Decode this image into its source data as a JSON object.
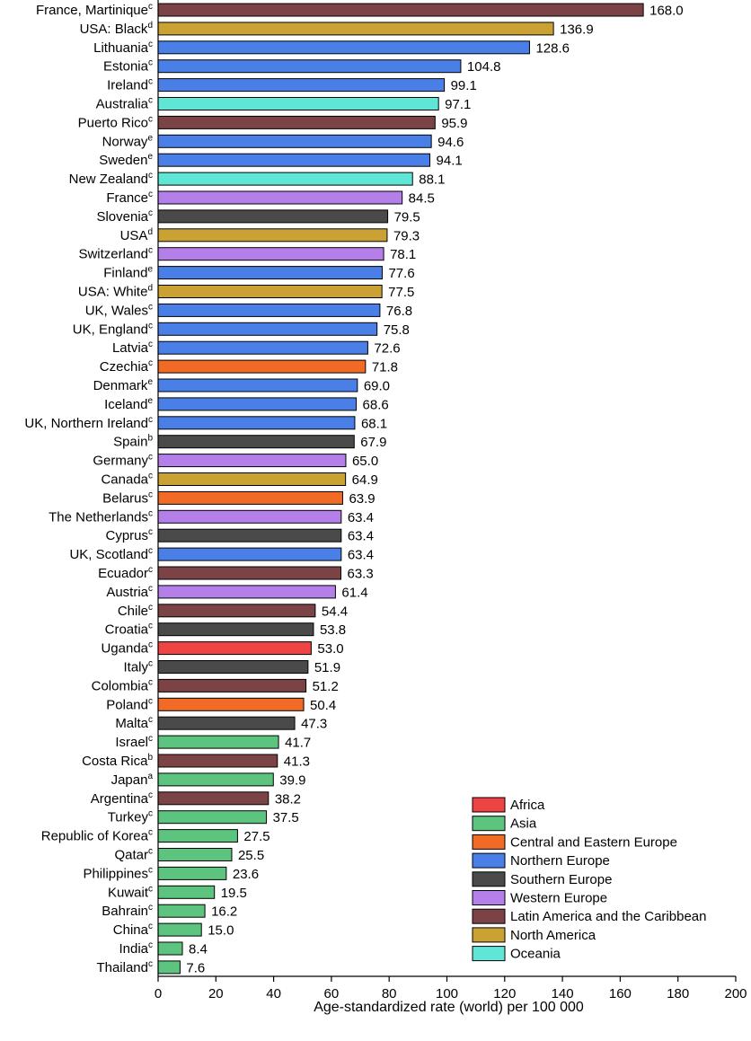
{
  "chart_data": {
    "type": "bar",
    "orientation": "horizontal",
    "title": "",
    "xlabel": "Age-standardized rate (world) per 100 000",
    "ylabel": "",
    "xlim": [
      0,
      200
    ],
    "xticks": [
      0,
      20,
      40,
      60,
      80,
      100,
      120,
      140,
      160,
      180,
      200
    ],
    "legend_position": "bottom-right",
    "regions": [
      {
        "key": "africa",
        "name": "Africa",
        "color": "#ee4444"
      },
      {
        "key": "asia",
        "name": "Asia",
        "color": "#5cc47f"
      },
      {
        "key": "cee",
        "name": "Central and Eastern Europe",
        "color": "#f26b26"
      },
      {
        "key": "neu",
        "name": "Northern Europe",
        "color": "#4a7fe8"
      },
      {
        "key": "seu",
        "name": "Southern Europe",
        "color": "#4a4a4a"
      },
      {
        "key": "weu",
        "name": "Western Europe",
        "color": "#b57fea"
      },
      {
        "key": "lac",
        "name": "Latin America and the Caribbean",
        "color": "#7b4346"
      },
      {
        "key": "nam",
        "name": "North America",
        "color": "#c9a233"
      },
      {
        "key": "oce",
        "name": "Oceania",
        "color": "#5fe6d6"
      }
    ],
    "bars": [
      {
        "label": "France, Martinique",
        "sup": "c",
        "value": 168.0,
        "value_label": "168.0",
        "region": "lac"
      },
      {
        "label": "USA: Black",
        "sup": "d",
        "value": 136.9,
        "value_label": "136.9",
        "region": "nam"
      },
      {
        "label": "Lithuania",
        "sup": "c",
        "value": 128.6,
        "value_label": "128.6",
        "region": "neu"
      },
      {
        "label": "Estonia",
        "sup": "c",
        "value": 104.8,
        "value_label": "104.8",
        "region": "neu"
      },
      {
        "label": "Ireland",
        "sup": "c",
        "value": 99.1,
        "value_label": "99.1",
        "region": "neu"
      },
      {
        "label": "Australia",
        "sup": "c",
        "value": 97.1,
        "value_label": "97.1",
        "region": "oce"
      },
      {
        "label": "Puerto Rico",
        "sup": "c",
        "value": 95.9,
        "value_label": "95.9",
        "region": "lac"
      },
      {
        "label": "Norway",
        "sup": "e",
        "value": 94.6,
        "value_label": "94.6",
        "region": "neu"
      },
      {
        "label": "Sweden",
        "sup": "e",
        "value": 94.1,
        "value_label": "94.1",
        "region": "neu"
      },
      {
        "label": "New Zealand",
        "sup": "c",
        "value": 88.1,
        "value_label": "88.1",
        "region": "oce"
      },
      {
        "label": "France",
        "sup": "c",
        "value": 84.5,
        "value_label": "84.5",
        "region": "weu"
      },
      {
        "label": "Slovenia",
        "sup": "c",
        "value": 79.5,
        "value_label": "79.5",
        "region": "seu"
      },
      {
        "label": "USA",
        "sup": "d",
        "value": 79.3,
        "value_label": "79.3",
        "region": "nam"
      },
      {
        "label": "Switzerland",
        "sup": "c",
        "value": 78.1,
        "value_label": "78.1",
        "region": "weu"
      },
      {
        "label": "Finland",
        "sup": "e",
        "value": 77.6,
        "value_label": "77.6",
        "region": "neu"
      },
      {
        "label": "USA: White",
        "sup": "d",
        "value": 77.5,
        "value_label": "77.5",
        "region": "nam"
      },
      {
        "label": "UK, Wales",
        "sup": "c",
        "value": 76.8,
        "value_label": "76.8",
        "region": "neu"
      },
      {
        "label": "UK, England",
        "sup": "c",
        "value": 75.8,
        "value_label": "75.8",
        "region": "neu"
      },
      {
        "label": "Latvia",
        "sup": "c",
        "value": 72.6,
        "value_label": "72.6",
        "region": "neu"
      },
      {
        "label": "Czechia",
        "sup": "c",
        "value": 71.8,
        "value_label": "71.8",
        "region": "cee"
      },
      {
        "label": "Denmark",
        "sup": "e",
        "value": 69.0,
        "value_label": "69.0",
        "region": "neu"
      },
      {
        "label": "Iceland",
        "sup": "e",
        "value": 68.6,
        "value_label": "68.6",
        "region": "neu"
      },
      {
        "label": "UK, Northern Ireland",
        "sup": "c",
        "value": 68.1,
        "value_label": "68.1",
        "region": "neu"
      },
      {
        "label": "Spain",
        "sup": "b",
        "value": 67.9,
        "value_label": "67.9",
        "region": "seu"
      },
      {
        "label": "Germany",
        "sup": "c",
        "value": 65.0,
        "value_label": "65.0",
        "region": "weu"
      },
      {
        "label": "Canada",
        "sup": "c",
        "value": 64.9,
        "value_label": "64.9",
        "region": "nam"
      },
      {
        "label": "Belarus",
        "sup": "c",
        "value": 63.9,
        "value_label": "63.9",
        "region": "cee"
      },
      {
        "label": "The Netherlands",
        "sup": "c",
        "value": 63.4,
        "value_label": "63.4",
        "region": "weu"
      },
      {
        "label": "Cyprus",
        "sup": "c",
        "value": 63.4,
        "value_label": "63.4",
        "region": "seu"
      },
      {
        "label": "UK, Scotland",
        "sup": "c",
        "value": 63.4,
        "value_label": "63.4",
        "region": "neu"
      },
      {
        "label": "Ecuador",
        "sup": "c",
        "value": 63.3,
        "value_label": "63.3",
        "region": "lac"
      },
      {
        "label": "Austria",
        "sup": "c",
        "value": 61.4,
        "value_label": "61.4",
        "region": "weu"
      },
      {
        "label": "Chile",
        "sup": "c",
        "value": 54.4,
        "value_label": "54.4",
        "region": "lac"
      },
      {
        "label": "Croatia",
        "sup": "c",
        "value": 53.8,
        "value_label": "53.8",
        "region": "seu"
      },
      {
        "label": "Uganda",
        "sup": "c",
        "value": 53.0,
        "value_label": "53.0",
        "region": "africa"
      },
      {
        "label": "Italy",
        "sup": "c",
        "value": 51.9,
        "value_label": "51.9",
        "region": "seu"
      },
      {
        "label": "Colombia",
        "sup": "c",
        "value": 51.2,
        "value_label": "51.2",
        "region": "lac"
      },
      {
        "label": "Poland",
        "sup": "c",
        "value": 50.4,
        "value_label": "50.4",
        "region": "cee"
      },
      {
        "label": "Malta",
        "sup": "c",
        "value": 47.3,
        "value_label": "47.3",
        "region": "seu"
      },
      {
        "label": "Israel",
        "sup": "c",
        "value": 41.7,
        "value_label": "41.7",
        "region": "asia"
      },
      {
        "label": "Costa Rica",
        "sup": "b",
        "value": 41.3,
        "value_label": "41.3",
        "region": "lac"
      },
      {
        "label": "Japan",
        "sup": "a",
        "value": 39.9,
        "value_label": "39.9",
        "region": "asia"
      },
      {
        "label": "Argentina",
        "sup": "c",
        "value": 38.2,
        "value_label": "38.2",
        "region": "lac"
      },
      {
        "label": "Turkey",
        "sup": "c",
        "value": 37.5,
        "value_label": "37.5",
        "region": "asia"
      },
      {
        "label": "Republic of Korea",
        "sup": "c",
        "value": 27.5,
        "value_label": "27.5",
        "region": "asia"
      },
      {
        "label": "Qatar",
        "sup": "c",
        "value": 25.5,
        "value_label": "25.5",
        "region": "asia"
      },
      {
        "label": "Philippines",
        "sup": "c",
        "value": 23.6,
        "value_label": "23.6",
        "region": "asia"
      },
      {
        "label": "Kuwait",
        "sup": "c",
        "value": 19.5,
        "value_label": "19.5",
        "region": "asia"
      },
      {
        "label": "Bahrain",
        "sup": "c",
        "value": 16.2,
        "value_label": "16.2",
        "region": "asia"
      },
      {
        "label": "China",
        "sup": "c",
        "value": 15.0,
        "value_label": "15.0",
        "region": "asia"
      },
      {
        "label": "India",
        "sup": "c",
        "value": 8.4,
        "value_label": "8.4",
        "region": "asia"
      },
      {
        "label": "Thailand",
        "sup": "c",
        "value": 7.6,
        "value_label": "7.6",
        "region": "asia"
      }
    ]
  }
}
